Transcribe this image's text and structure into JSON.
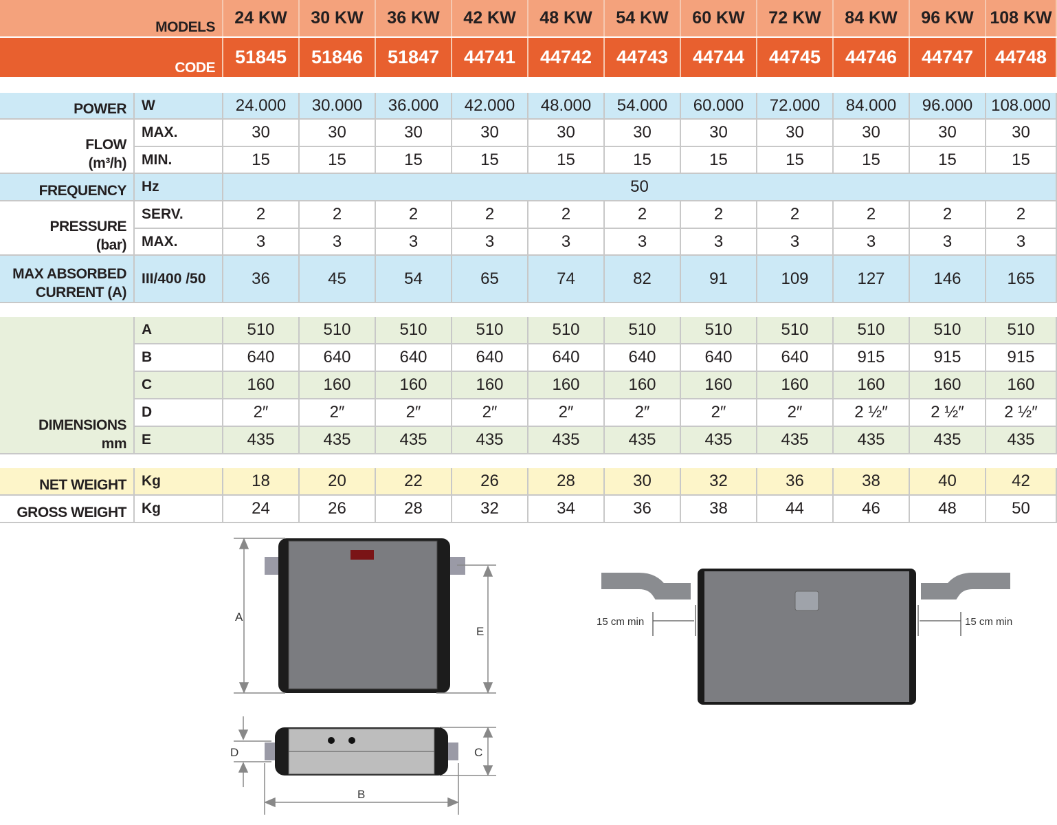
{
  "header": {
    "models_label": "MODELS",
    "code_label": "CODE",
    "models": [
      "24 KW",
      "30 KW",
      "36 KW",
      "42 KW",
      "48 KW",
      "54 KW",
      "60 KW",
      "72 KW",
      "84 KW",
      "96 KW",
      "108 KW"
    ],
    "codes": [
      "51845",
      "51846",
      "51847",
      "44741",
      "44742",
      "44743",
      "44744",
      "44745",
      "44746",
      "44747",
      "44748"
    ]
  },
  "colors": {
    "models_bg": "#f4a27c",
    "code_bg": "#e8602f",
    "blue_row": "#cce9f6",
    "green_row": "#e8f0dc",
    "yellow_row": "#fdf5c9"
  },
  "groups": [
    {
      "key": "power",
      "label": [
        "POWER"
      ],
      "bg": "#cce9f6",
      "rows": [
        {
          "unit": "W",
          "values": [
            "24.000",
            "30.000",
            "36.000",
            "42.000",
            "48.000",
            "54.000",
            "60.000",
            "72.000",
            "84.000",
            "96.000",
            "108.000"
          ]
        }
      ]
    },
    {
      "key": "flow",
      "label": [
        "FLOW",
        "(m³/h)"
      ],
      "bg": "#ffffff",
      "rows": [
        {
          "unit": "MAX.",
          "values": [
            "30",
            "30",
            "30",
            "30",
            "30",
            "30",
            "30",
            "30",
            "30",
            "30",
            "30"
          ]
        },
        {
          "unit": "MIN.",
          "values": [
            "15",
            "15",
            "15",
            "15",
            "15",
            "15",
            "15",
            "15",
            "15",
            "15",
            "15"
          ]
        }
      ]
    },
    {
      "key": "frequency",
      "label": [
        "FREQUENCY"
      ],
      "bg": "#cce9f6",
      "rows": [
        {
          "unit": "Hz",
          "span": "50"
        }
      ]
    },
    {
      "key": "pressure",
      "label": [
        "PRESSURE",
        "(bar)"
      ],
      "bg": "#ffffff",
      "rows": [
        {
          "unit": "SERV.",
          "values": [
            "2",
            "2",
            "2",
            "2",
            "2",
            "2",
            "2",
            "2",
            "2",
            "2",
            "2"
          ]
        },
        {
          "unit": "MAX.",
          "values": [
            "3",
            "3",
            "3",
            "3",
            "3",
            "3",
            "3",
            "3",
            "3",
            "3",
            "3"
          ]
        }
      ]
    },
    {
      "key": "current",
      "label": [
        "MAX ABSORBED",
        "CURRENT  (A)"
      ],
      "bg": "#cce9f6",
      "rows": [
        {
          "unit": "III/400 /50",
          "values": [
            "36",
            "45",
            "54",
            "65",
            "74",
            "82",
            "91",
            "109",
            "127",
            "146",
            "165"
          ]
        }
      ]
    },
    {
      "key": "dimensions",
      "label": [
        "DIMENSIONS",
        "mm"
      ],
      "bg": "#e8f0dc",
      "alt": true,
      "rows": [
        {
          "unit": "A",
          "values": [
            "510",
            "510",
            "510",
            "510",
            "510",
            "510",
            "510",
            "510",
            "510",
            "510",
            "510"
          ]
        },
        {
          "unit": "B",
          "values": [
            "640",
            "640",
            "640",
            "640",
            "640",
            "640",
            "640",
            "640",
            "915",
            "915",
            "915"
          ]
        },
        {
          "unit": "C",
          "values": [
            "160",
            "160",
            "160",
            "160",
            "160",
            "160",
            "160",
            "160",
            "160",
            "160",
            "160"
          ]
        },
        {
          "unit": "D",
          "values": [
            "2″",
            "2″",
            "2″",
            "2″",
            "2″",
            "2″",
            "2″",
            "2″",
            "2 ½″",
            "2 ½″",
            "2 ½″"
          ]
        },
        {
          "unit": "E",
          "values": [
            "435",
            "435",
            "435",
            "435",
            "435",
            "435",
            "435",
            "435",
            "435",
            "435",
            "435"
          ]
        }
      ]
    },
    {
      "key": "net-weight",
      "label": [
        "NET WEIGHT"
      ],
      "bg": "#fdf5c9",
      "rows": [
        {
          "unit": "Kg",
          "values": [
            "18",
            "20",
            "22",
            "26",
            "28",
            "30",
            "32",
            "36",
            "38",
            "40",
            "42"
          ]
        }
      ]
    },
    {
      "key": "gross-weight",
      "label": [
        "GROSS WEIGHT"
      ],
      "bg": "#ffffff",
      "rows": [
        {
          "unit": "Kg",
          "values": [
            "24",
            "26",
            "28",
            "32",
            "34",
            "36",
            "38",
            "44",
            "46",
            "48",
            "50"
          ]
        }
      ]
    }
  ],
  "diagrams": {
    "dim_labels": {
      "a": "A",
      "b": "B",
      "c": "C",
      "d": "D",
      "e": "E"
    },
    "clearance_left": "15 cm min",
    "clearance_right": "15 cm min"
  }
}
